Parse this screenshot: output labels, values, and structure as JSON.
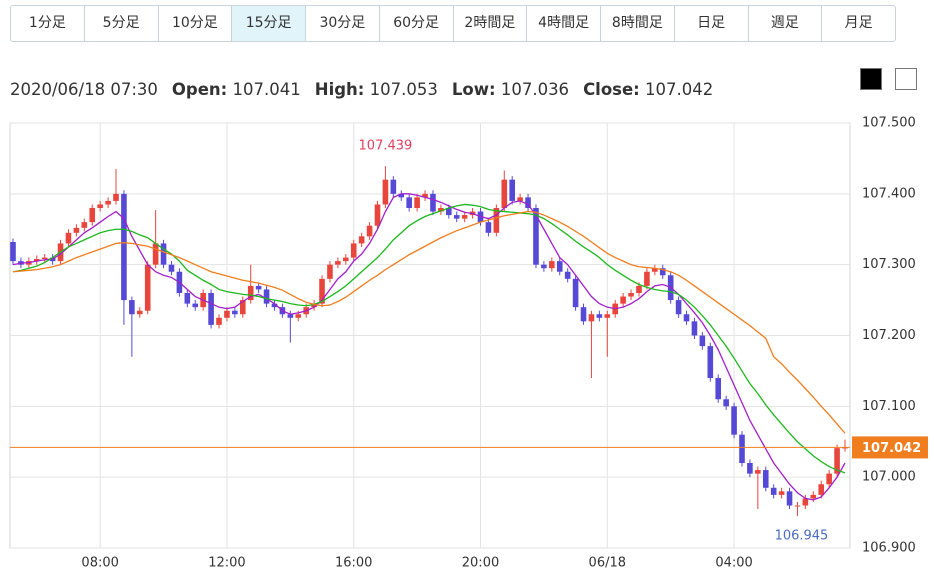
{
  "tabs": [
    "1分足",
    "5分足",
    "10分足",
    "15分足",
    "30分足",
    "60分足",
    "2時間足",
    "4時間足",
    "8時間足",
    "日足",
    "週足",
    "月足"
  ],
  "selected_tab": 3,
  "header": {
    "datetime": "2020/06/18 07:30",
    "open_label": "Open:",
    "open": "107.041",
    "high_label": "High:",
    "high": "107.053",
    "low_label": "Low:",
    "low": "107.036",
    "close_label": "Close:",
    "close": "107.042"
  },
  "chart_data": {
    "type": "candlestick",
    "categories": [
      null,
      null,
      null,
      null,
      null,
      null,
      null,
      null,
      null,
      null,
      null,
      "08:00",
      null,
      null,
      null,
      null,
      null,
      null,
      null,
      null,
      null,
      null,
      null,
      null,
      null,
      null,
      null,
      "12:00",
      null,
      null,
      null,
      null,
      null,
      null,
      null,
      null,
      null,
      null,
      null,
      null,
      null,
      null,
      null,
      "16:00",
      null,
      null,
      null,
      null,
      null,
      null,
      null,
      null,
      null,
      null,
      null,
      null,
      null,
      null,
      null,
      "20:00",
      null,
      null,
      null,
      null,
      null,
      null,
      null,
      null,
      null,
      null,
      null,
      null,
      null,
      null,
      null,
      "06/18",
      null,
      null,
      null,
      null,
      null,
      null,
      null,
      null,
      null,
      null,
      null,
      null,
      null,
      null,
      null,
      "04:00",
      null,
      null,
      null,
      null,
      null,
      null,
      null,
      null,
      null,
      null,
      null,
      null,
      null,
      null
    ],
    "open": [
      107.332,
      107.305,
      107.3,
      107.305,
      107.308,
      107.31,
      107.305,
      107.33,
      107.345,
      107.352,
      107.36,
      107.38,
      107.385,
      107.39,
      107.4,
      107.25,
      107.23,
      107.235,
      107.3,
      107.33,
      107.3,
      107.29,
      107.26,
      107.245,
      107.24,
      107.26,
      107.215,
      107.225,
      107.235,
      107.23,
      107.25,
      107.27,
      107.265,
      107.245,
      107.24,
      107.23,
      107.225,
      107.23,
      107.24,
      107.245,
      107.28,
      107.3,
      107.305,
      107.31,
      107.33,
      107.34,
      107.355,
      107.385,
      107.42,
      107.4,
      107.395,
      107.38,
      107.395,
      107.4,
      107.375,
      107.38,
      107.37,
      107.365,
      107.37,
      107.375,
      107.36,
      107.345,
      107.38,
      107.42,
      107.39,
      107.395,
      107.38,
      107.3,
      107.295,
      107.305,
      107.29,
      107.28,
      107.24,
      107.22,
      107.23,
      107.225,
      107.23,
      107.245,
      107.255,
      107.26,
      107.27,
      107.29,
      107.295,
      107.285,
      107.25,
      107.23,
      107.22,
      107.2,
      107.185,
      107.14,
      107.11,
      107.1,
      107.06,
      107.02,
      107.005,
      107.01,
      106.985,
      106.975,
      106.98,
      106.96,
      106.96,
      106.97,
      106.975,
      106.99,
      107.005,
      107.041
    ],
    "high": [
      107.337,
      107.31,
      107.31,
      107.313,
      107.315,
      107.315,
      107.335,
      107.35,
      107.357,
      107.365,
      107.385,
      107.39,
      107.395,
      107.435,
      107.405,
      107.255,
      107.24,
      107.305,
      107.377,
      107.335,
      107.305,
      107.295,
      107.265,
      107.25,
      107.265,
      107.265,
      107.23,
      107.24,
      107.24,
      107.255,
      107.3,
      107.275,
      107.27,
      107.25,
      107.245,
      107.235,
      107.235,
      107.245,
      107.25,
      107.285,
      107.305,
      107.31,
      107.315,
      107.335,
      107.345,
      107.36,
      107.39,
      107.439,
      107.425,
      107.405,
      107.4,
      107.4,
      107.405,
      107.405,
      107.385,
      107.385,
      107.375,
      107.375,
      107.38,
      107.38,
      107.365,
      107.385,
      107.433,
      107.425,
      107.4,
      107.4,
      107.385,
      107.305,
      107.31,
      107.31,
      107.295,
      107.285,
      107.245,
      107.235,
      107.235,
      107.235,
      107.25,
      107.26,
      107.265,
      107.275,
      107.295,
      107.3,
      107.3,
      107.29,
      107.255,
      107.235,
      107.225,
      107.205,
      107.19,
      107.145,
      107.115,
      107.105,
      107.065,
      107.025,
      107.015,
      107.015,
      106.99,
      106.985,
      106.985,
      106.965,
      106.975,
      106.98,
      106.995,
      107.01,
      107.046,
      107.053
    ],
    "low": [
      107.3,
      107.295,
      107.295,
      107.3,
      107.303,
      107.3,
      107.3,
      107.325,
      107.34,
      107.347,
      107.355,
      107.375,
      107.38,
      107.385,
      107.215,
      107.17,
      107.225,
      107.23,
      107.295,
      107.295,
      107.285,
      107.255,
      107.24,
      107.235,
      107.235,
      107.21,
      107.21,
      107.22,
      107.225,
      107.225,
      107.245,
      107.26,
      107.24,
      107.235,
      107.225,
      107.19,
      107.22,
      107.225,
      107.235,
      107.24,
      107.275,
      107.295,
      107.3,
      107.305,
      107.325,
      107.335,
      107.35,
      107.38,
      107.395,
      107.39,
      107.375,
      107.375,
      107.39,
      107.37,
      107.37,
      107.365,
      107.36,
      107.36,
      107.365,
      107.355,
      107.34,
      107.34,
      107.375,
      107.385,
      107.385,
      107.375,
      107.295,
      107.29,
      107.29,
      107.285,
      107.275,
      107.235,
      107.215,
      107.14,
      107.22,
      107.17,
      107.225,
      107.24,
      107.25,
      107.255,
      107.265,
      107.285,
      107.28,
      107.245,
      107.225,
      107.215,
      107.195,
      107.18,
      107.135,
      107.105,
      107.095,
      107.055,
      107.015,
      107.0,
      106.955,
      106.98,
      106.97,
      106.97,
      106.955,
      106.945,
      106.955,
      106.965,
      106.97,
      106.985,
      107.0,
      107.036
    ],
    "close": [
      107.305,
      107.3,
      107.305,
      107.308,
      107.31,
      107.305,
      107.33,
      107.345,
      107.352,
      107.36,
      107.38,
      107.385,
      107.39,
      107.4,
      107.25,
      107.23,
      107.235,
      107.3,
      107.33,
      107.3,
      107.29,
      107.26,
      107.245,
      107.24,
      107.26,
      107.215,
      107.225,
      107.235,
      107.23,
      107.25,
      107.27,
      107.265,
      107.245,
      107.24,
      107.23,
      107.225,
      107.23,
      107.24,
      107.245,
      107.28,
      107.3,
      107.305,
      107.31,
      107.33,
      107.34,
      107.355,
      107.385,
      107.42,
      107.4,
      107.395,
      107.38,
      107.395,
      107.4,
      107.375,
      107.38,
      107.37,
      107.365,
      107.37,
      107.375,
      107.36,
      107.345,
      107.38,
      107.42,
      107.39,
      107.395,
      107.38,
      107.3,
      107.295,
      107.305,
      107.29,
      107.28,
      107.24,
      107.22,
      107.23,
      107.225,
      107.23,
      107.245,
      107.255,
      107.26,
      107.27,
      107.29,
      107.295,
      107.285,
      107.25,
      107.23,
      107.22,
      107.2,
      107.185,
      107.14,
      107.11,
      107.1,
      107.06,
      107.02,
      107.005,
      107.01,
      106.985,
      106.975,
      106.98,
      106.96,
      106.96,
      106.97,
      106.975,
      106.99,
      107.005,
      107.041,
      107.042
    ],
    "up_color": "#e8453c",
    "down_color": "#5549d6",
    "series": [
      {
        "color": "#a11fc9",
        "values": [
          107.3,
          107.302,
          107.303,
          107.305,
          107.307,
          107.308,
          107.315,
          107.325,
          107.335,
          107.345,
          107.352,
          107.36,
          107.368,
          107.375,
          107.365,
          107.34,
          107.32,
          107.3,
          107.29,
          107.285,
          107.282,
          107.275,
          107.265,
          107.255,
          107.25,
          107.245,
          107.24,
          107.238,
          107.24,
          107.248,
          107.255,
          107.258,
          107.252,
          107.245,
          107.235,
          107.23,
          107.232,
          107.235,
          107.24,
          107.25,
          107.265,
          107.28,
          107.29,
          107.305,
          107.315,
          107.33,
          107.35,
          107.375,
          107.395,
          107.4,
          107.4,
          107.398,
          107.395,
          107.392,
          107.388,
          107.383,
          107.378,
          107.374,
          107.372,
          107.368,
          107.365,
          107.37,
          107.38,
          107.388,
          107.39,
          107.385,
          107.37,
          107.35,
          107.33,
          107.31,
          107.3,
          107.285,
          107.27,
          107.255,
          107.245,
          107.24,
          107.238,
          107.24,
          107.245,
          107.252,
          107.262,
          107.27,
          107.272,
          107.268,
          107.258,
          107.245,
          107.232,
          107.218,
          107.2,
          107.18,
          107.155,
          107.13,
          107.105,
          107.08,
          107.06,
          107.04,
          107.02,
          107.005,
          106.99,
          106.978,
          106.97,
          106.968,
          106.972,
          106.985,
          107.0,
          107.02
        ]
      },
      {
        "color": "#1cb81c",
        "values": [
          107.29,
          107.292,
          107.295,
          107.298,
          107.303,
          107.31,
          107.318,
          107.325,
          107.33,
          107.335,
          107.34,
          107.345,
          107.348,
          107.35,
          107.35,
          107.347,
          107.342,
          107.338,
          107.33,
          107.322,
          107.315,
          107.305,
          107.292,
          107.285,
          107.278,
          107.272,
          107.265,
          107.262,
          107.26,
          107.258,
          107.257,
          107.255,
          107.252,
          107.25,
          107.248,
          107.245,
          107.243,
          107.242,
          107.244,
          107.248,
          107.255,
          107.262,
          107.27,
          107.28,
          107.29,
          107.3,
          107.31,
          107.322,
          107.335,
          107.345,
          107.355,
          107.362,
          107.368,
          107.372,
          107.376,
          107.38,
          107.383,
          107.385,
          107.384,
          107.382,
          107.378,
          107.376,
          107.375,
          107.374,
          107.373,
          107.372,
          107.37,
          107.365,
          107.358,
          107.35,
          107.342,
          107.333,
          107.325,
          107.318,
          107.31,
          107.3,
          107.292,
          107.285,
          107.278,
          107.272,
          107.268,
          107.265,
          107.263,
          107.262,
          107.258,
          107.25,
          107.24,
          107.228,
          107.215,
          107.2,
          107.185,
          107.168,
          107.15,
          107.132,
          107.118,
          107.102,
          107.088,
          107.075,
          107.062,
          107.05,
          107.04,
          107.03,
          107.022,
          107.015,
          107.01,
          107.006
        ]
      },
      {
        "color": "#f07d1e",
        "values": [
          107.29,
          107.291,
          107.292,
          107.293,
          107.295,
          107.297,
          107.3,
          107.305,
          107.31,
          107.314,
          107.318,
          107.322,
          107.326,
          107.33,
          107.331,
          107.33,
          107.328,
          107.326,
          107.322,
          107.318,
          107.314,
          107.31,
          107.305,
          107.3,
          107.295,
          107.29,
          107.287,
          107.284,
          107.281,
          107.278,
          107.276,
          107.274,
          107.271,
          107.268,
          107.264,
          107.258,
          107.252,
          107.247,
          107.244,
          107.242,
          107.243,
          107.248,
          107.254,
          107.262,
          107.27,
          107.278,
          107.285,
          107.293,
          107.3,
          107.307,
          107.314,
          107.32,
          107.326,
          107.332,
          107.338,
          107.343,
          107.348,
          107.352,
          107.356,
          107.36,
          107.363,
          107.366,
          107.369,
          107.371,
          107.373,
          107.375,
          107.374,
          107.37,
          107.365,
          107.36,
          107.354,
          107.347,
          107.34,
          107.332,
          107.324,
          107.316,
          107.31,
          107.305,
          107.3,
          107.297,
          107.296,
          107.295,
          107.293,
          107.29,
          107.285,
          107.278,
          107.27,
          107.262,
          107.254,
          107.246,
          107.238,
          107.23,
          107.222,
          107.214,
          107.205,
          107.196,
          107.17,
          107.16,
          107.148,
          107.137,
          107.125,
          107.113,
          107.1,
          107.088,
          107.075,
          107.062
        ]
      }
    ],
    "ylim": [
      106.9,
      107.5
    ],
    "yticks": [
      {
        "value": 106.9,
        "label": "106.900"
      },
      {
        "value": 107.0,
        "label": "107.000"
      },
      {
        "value": 107.1,
        "label": "107.100"
      },
      {
        "value": 107.2,
        "label": "107.200"
      },
      {
        "value": 107.3,
        "label": "107.300"
      },
      {
        "value": 107.4,
        "label": "107.400"
      },
      {
        "value": 107.5,
        "label": "107.500"
      }
    ],
    "grid": true,
    "last_price": {
      "value": 107.042,
      "label": "107.042",
      "color": "#f07d1e"
    },
    "high_label": {
      "value": 107.439,
      "label": "107.439",
      "color": "#e0405e"
    },
    "low_label": {
      "value": 106.945,
      "label": "106.945",
      "color": "#4a6cc0"
    }
  }
}
